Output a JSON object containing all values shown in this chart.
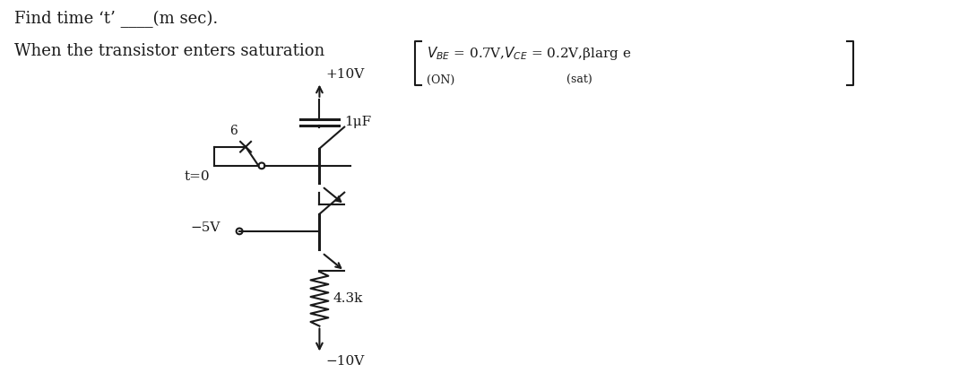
{
  "title_line1": "Find time ‘t’ ____(m sec).",
  "title_line2": "When the transistor enters saturation",
  "sub_on": "(ON)",
  "sub_sat": "(sat)",
  "vplus": "+10V",
  "vminus": "−10V",
  "vsource": "−5V",
  "capacitor_label": "1μF",
  "resistor_label": "4.3k",
  "t_label": "t=0",
  "switch_label": "6",
  "bg_color": "#ffffff",
  "line_color": "#1a1a1a",
  "text_color": "#1a1a1a",
  "font_size_title": 13,
  "font_size_circuit": 11
}
